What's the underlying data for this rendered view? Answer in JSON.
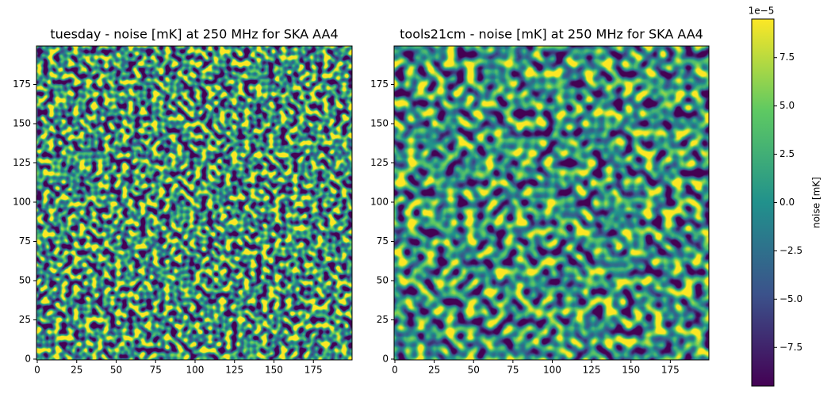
{
  "chart_data": [
    {
      "type": "heatmap",
      "title": "tuesday - noise [mK] at 250 MHz for SKA AA4",
      "xlim": [
        -0.5,
        199.5
      ],
      "ylim": [
        -0.5,
        199.5
      ],
      "xticks": [
        0,
        25,
        50,
        75,
        100,
        125,
        150,
        175
      ],
      "yticks": [
        0,
        25,
        50,
        75,
        100,
        125,
        150,
        175
      ]
    },
    {
      "type": "heatmap",
      "title": "tools21cm - noise [mK] at 250 MHz for SKA AA4",
      "xlim": [
        -0.5,
        199.5
      ],
      "ylim": [
        -0.5,
        199.5
      ],
      "xticks": [
        0,
        25,
        50,
        75,
        100,
        125,
        150,
        175
      ],
      "yticks": [
        0,
        25,
        50,
        75,
        100,
        125,
        150,
        175
      ]
    }
  ],
  "colorbar": {
    "label": "noise [mK]",
    "offset_text": "1e−5",
    "lim": [
      -9.5e-05,
      9.5e-05
    ],
    "ticks": [
      {
        "value": -7.5e-05,
        "label": "−7.5"
      },
      {
        "value": -5e-05,
        "label": "−5.0"
      },
      {
        "value": -2.5e-05,
        "label": "−2.5"
      },
      {
        "value": 0,
        "label": "0.0"
      },
      {
        "value": 2.5e-05,
        "label": "2.5"
      },
      {
        "value": 5e-05,
        "label": "5.0"
      },
      {
        "value": 7.5e-05,
        "label": "7.5"
      }
    ]
  }
}
